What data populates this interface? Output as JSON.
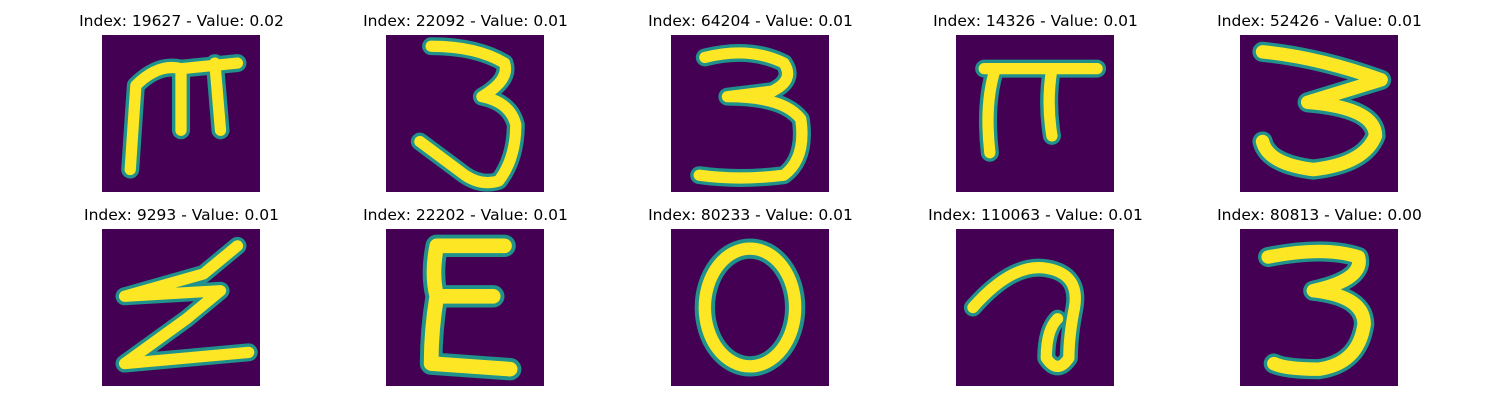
{
  "colors": {
    "background": "#440154",
    "stroke_mid": "#21918c",
    "stroke_hi": "#fde725"
  },
  "panels": [
    {
      "title": "Index: 19627 - Value: 0.02",
      "glyph": "m-like letterform"
    },
    {
      "title": "Index: 22092 - Value: 0.01",
      "glyph": "3"
    },
    {
      "title": "Index: 64204 - Value: 0.01",
      "glyph": "3"
    },
    {
      "title": "Index: 14326 - Value: 0.01",
      "glyph": "pi-like letterform"
    },
    {
      "title": "Index: 52426 - Value: 0.01",
      "glyph": "3"
    },
    {
      "title": "Index: 9293 - Value: 0.01",
      "glyph": "z-like letterform"
    },
    {
      "title": "Index: 22202 - Value: 0.01",
      "glyph": "epsilon-like letterform"
    },
    {
      "title": "Index: 80233 - Value: 0.01",
      "glyph": "0"
    },
    {
      "title": "Index: 110063 - Value: 0.01",
      "glyph": "a-like letterform"
    },
    {
      "title": "Index: 80813 - Value: 0.00",
      "glyph": "3"
    }
  ]
}
